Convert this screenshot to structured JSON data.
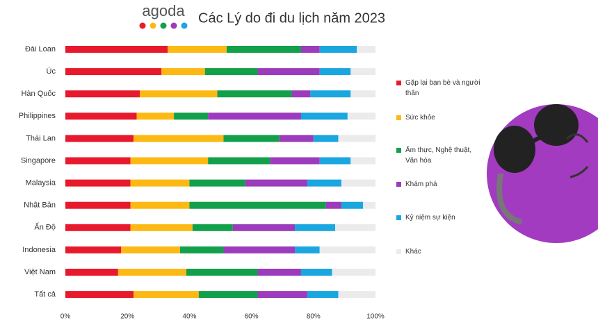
{
  "brand": "agoda",
  "chart_data": {
    "type": "stacked-barh",
    "title": "Các Lý do đi du lịch năm 2023",
    "categories": [
      "Đài Loan",
      "Úc",
      "Hàn Quốc",
      "Philippines",
      "Thái Lan",
      "Singapore",
      "Malaysia",
      "Nhật Bản",
      "Ấn Độ",
      "Indonesia",
      "Việt Nam",
      "Tất cả"
    ],
    "series": [
      {
        "name": "Gặp lại bạn bè và người thân",
        "color": "#e8192c",
        "values": [
          33,
          31,
          24,
          23,
          22,
          21,
          21,
          21,
          21,
          18,
          17,
          22
        ]
      },
      {
        "name": "Sức khỏe",
        "color": "#fdb913",
        "values": [
          19,
          14,
          25,
          12,
          29,
          25,
          19,
          19,
          20,
          19,
          22,
          21
        ]
      },
      {
        "name": "Ẩm thực, Nghệ thuật, Văn hóa",
        "color": "#12a04b",
        "values": [
          24,
          17,
          24,
          11,
          18,
          20,
          18,
          44,
          13,
          14,
          23,
          19
        ]
      },
      {
        "name": "Khám phá",
        "color": "#9c3bbb",
        "values": [
          6,
          20,
          6,
          30,
          11,
          16,
          20,
          5,
          20,
          23,
          14,
          16
        ]
      },
      {
        "name": "Kỷ niệm sự kiện",
        "color": "#1aa6df",
        "values": [
          12,
          10,
          13,
          15,
          8,
          10,
          11,
          7,
          13,
          8,
          10,
          10
        ]
      },
      {
        "name": "Khác",
        "color": "#ebebeb",
        "values": [
          6,
          8,
          8,
          9,
          12,
          8,
          11,
          4,
          13,
          18,
          14,
          12
        ]
      }
    ],
    "xlim": [
      0,
      100
    ],
    "xticks": [
      {
        "value": 0,
        "label": "0%"
      },
      {
        "value": 20,
        "label": "20%"
      },
      {
        "value": 40,
        "label": "40%"
      },
      {
        "value": 60,
        "label": "60%"
      },
      {
        "value": 80,
        "label": "80%"
      },
      {
        "value": 100,
        "label": "100%"
      }
    ],
    "legend": "right"
  }
}
